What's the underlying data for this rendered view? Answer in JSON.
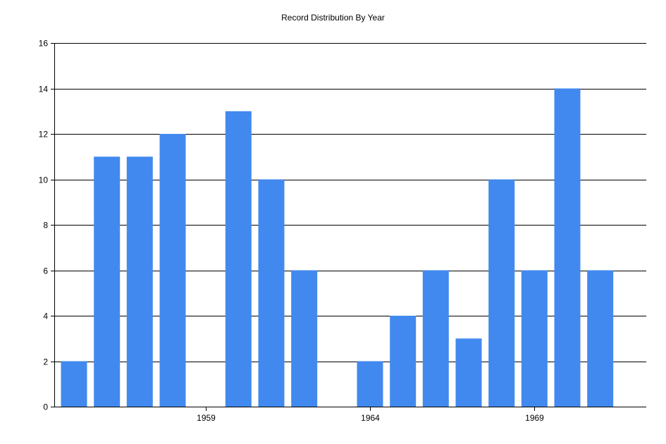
{
  "chart_data": {
    "type": "bar",
    "title": "Record Distribution By Year",
    "xlabel": "",
    "ylabel": "",
    "x": [
      1955,
      1956,
      1957,
      1958,
      1959,
      1960,
      1961,
      1962,
      1963,
      1964,
      1965,
      1966,
      1967,
      1968,
      1969,
      1970,
      1971
    ],
    "values": [
      2,
      11,
      11,
      12,
      0,
      13,
      10,
      6,
      0,
      2,
      4,
      6,
      3,
      10,
      6,
      14,
      6
    ],
    "xlim": [
      1954.4,
      1972.4
    ],
    "ylim": [
      0,
      16
    ],
    "x_ticks": [
      1959,
      1964,
      1969
    ],
    "y_ticks": [
      0,
      2,
      4,
      6,
      8,
      10,
      12,
      14,
      16
    ],
    "grid": "horizontal",
    "bar_color": "#4189EE",
    "legend": "none"
  }
}
